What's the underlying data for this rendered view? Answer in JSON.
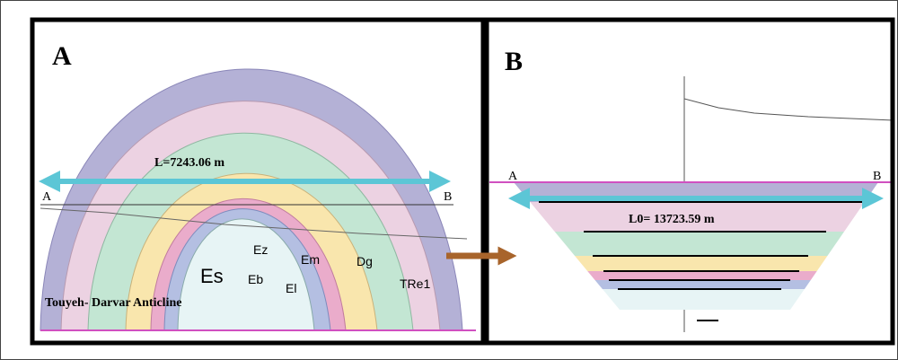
{
  "panels": [
    {
      "label": "A",
      "length_label": "L=7243.06 m",
      "section_start": "A",
      "section_end": "B",
      "caption": "Touyeh- Darvar Anticline",
      "units": [
        "Es",
        "Eb",
        "El",
        "Ez",
        "Em",
        "Dg",
        "TRe1"
      ]
    },
    {
      "label": "B",
      "length_label": "L0= 13723.59 m",
      "section_start": "A",
      "section_end": "B"
    }
  ]
}
